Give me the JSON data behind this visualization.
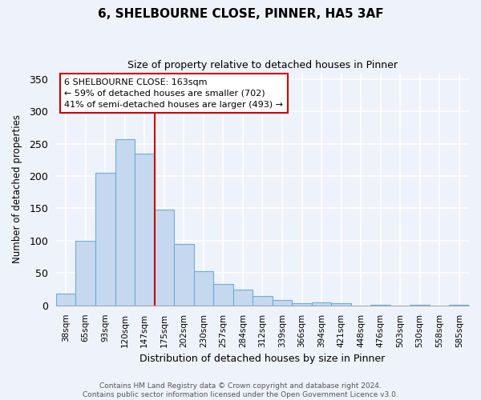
{
  "title": "6, SHELBOURNE CLOSE, PINNER, HA5 3AF",
  "subtitle": "Size of property relative to detached houses in Pinner",
  "xlabel": "Distribution of detached houses by size in Pinner",
  "ylabel": "Number of detached properties",
  "bar_labels": [
    "38sqm",
    "65sqm",
    "93sqm",
    "120sqm",
    "147sqm",
    "175sqm",
    "202sqm",
    "230sqm",
    "257sqm",
    "284sqm",
    "312sqm",
    "339sqm",
    "366sqm",
    "394sqm",
    "421sqm",
    "448sqm",
    "476sqm",
    "503sqm",
    "530sqm",
    "558sqm",
    "585sqm"
  ],
  "bar_values": [
    18,
    100,
    205,
    257,
    235,
    148,
    95,
    53,
    33,
    24,
    14,
    8,
    4,
    5,
    4,
    0,
    1,
    0,
    1,
    0,
    1
  ],
  "bar_color": "#c5d8f0",
  "bar_edge_color": "#6baed6",
  "ylim": [
    0,
    360
  ],
  "yticks": [
    0,
    50,
    100,
    150,
    200,
    250,
    300,
    350
  ],
  "vline_index": 5,
  "vline_color": "#cc0000",
  "annotation_lines": [
    "6 SHELBOURNE CLOSE: 163sqm",
    "← 59% of detached houses are smaller (702)",
    "41% of semi-detached houses are larger (493) →"
  ],
  "footer_lines": [
    "Contains HM Land Registry data © Crown copyright and database right 2024.",
    "Contains public sector information licensed under the Open Government Licence v3.0."
  ],
  "background_color": "#eef2fb",
  "plot_bg_color": "#eef2fb",
  "grid_color": "#ffffff"
}
